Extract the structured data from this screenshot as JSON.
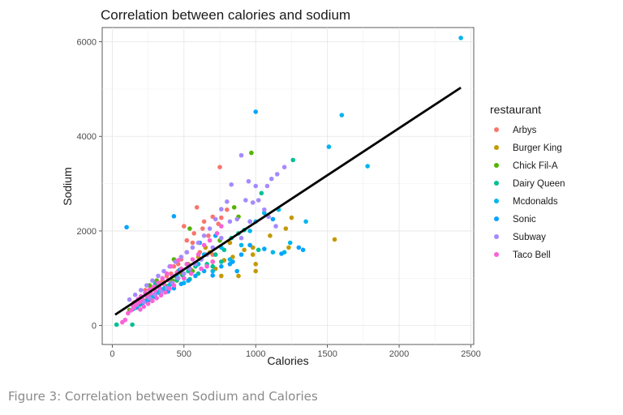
{
  "caption": "Figure 3: Correlation between Sodium and Calories",
  "chart_data": {
    "type": "scatter",
    "title": "Correlation between calories and sodium",
    "xlabel": "Calories",
    "ylabel": "Sodium",
    "xlim": [
      -70,
      2520
    ],
    "ylim": [
      -400,
      6300
    ],
    "x_ticks": [
      0,
      500,
      1000,
      1500,
      2000,
      2500
    ],
    "y_ticks": [
      0,
      2000,
      4000,
      6000
    ],
    "grid": true,
    "legend_title": "restaurant",
    "legend_position": "right",
    "trend_line": {
      "x": [
        20,
        2430
      ],
      "y": [
        230,
        5030
      ]
    },
    "series": [
      {
        "name": "Arbys",
        "color": "#F8766D",
        "points": [
          [
            750,
            3350
          ],
          [
            590,
            2500
          ],
          [
            700,
            2300
          ],
          [
            640,
            2200
          ],
          [
            760,
            2280
          ],
          [
            500,
            2100
          ],
          [
            520,
            1800
          ],
          [
            560,
            1750
          ],
          [
            610,
            1550
          ],
          [
            670,
            1900
          ],
          [
            700,
            1500
          ],
          [
            480,
            1400
          ],
          [
            430,
            1250
          ],
          [
            410,
            1100
          ],
          [
            350,
            950
          ],
          [
            300,
            850
          ],
          [
            230,
            750
          ],
          [
            260,
            650
          ],
          [
            200,
            550
          ],
          [
            180,
            500
          ],
          [
            520,
            1550
          ],
          [
            460,
            1300
          ],
          [
            800,
            2450
          ],
          [
            740,
            2150
          ],
          [
            630,
            2050
          ],
          [
            570,
            1950
          ],
          [
            380,
            1050
          ],
          [
            330,
            900
          ],
          [
            280,
            780
          ],
          [
            150,
            480
          ]
        ]
      },
      {
        "name": "Burger King",
        "color": "#C49A00",
        "points": [
          [
            1550,
            1820
          ],
          [
            1250,
            2280
          ],
          [
            1210,
            2050
          ],
          [
            1100,
            1900
          ],
          [
            1000,
            1150
          ],
          [
            980,
            1500
          ],
          [
            920,
            1600
          ],
          [
            880,
            1050
          ],
          [
            840,
            1450
          ],
          [
            780,
            1380
          ],
          [
            720,
            1200
          ],
          [
            680,
            1550
          ],
          [
            650,
            1650
          ],
          [
            600,
            1450
          ],
          [
            550,
            1180
          ],
          [
            530,
            1300
          ],
          [
            480,
            1100
          ],
          [
            450,
            950
          ],
          [
            400,
            850
          ],
          [
            360,
            760
          ],
          [
            320,
            700
          ],
          [
            270,
            600
          ],
          [
            240,
            540
          ],
          [
            210,
            470
          ],
          [
            1000,
            1300
          ],
          [
            760,
            1050
          ],
          [
            820,
            1750
          ],
          [
            700,
            1350
          ],
          [
            980,
            1650
          ],
          [
            1230,
            1650
          ]
        ]
      },
      {
        "name": "Chick Fil-A",
        "color": "#53B400",
        "points": [
          [
            970,
            3650
          ],
          [
            850,
            2500
          ],
          [
            880,
            2300
          ],
          [
            750,
            1800
          ],
          [
            650,
            1500
          ],
          [
            600,
            1300
          ],
          [
            560,
            1150
          ],
          [
            500,
            1000
          ],
          [
            460,
            1150
          ],
          [
            420,
            950
          ],
          [
            380,
            830
          ],
          [
            340,
            740
          ],
          [
            290,
            620
          ],
          [
            250,
            540
          ],
          [
            210,
            450
          ],
          [
            170,
            400
          ],
          [
            120,
            330
          ],
          [
            540,
            2050
          ],
          [
            430,
            1400
          ],
          [
            310,
            950
          ],
          [
            260,
            850
          ],
          [
            440,
            1050
          ]
        ]
      },
      {
        "name": "Dairy Queen",
        "color": "#00C094",
        "points": [
          [
            1260,
            3500
          ],
          [
            1040,
            2800
          ],
          [
            960,
            2200
          ],
          [
            920,
            2020
          ],
          [
            880,
            1950
          ],
          [
            830,
            1850
          ],
          [
            780,
            1600
          ],
          [
            720,
            1500
          ],
          [
            660,
            1300
          ],
          [
            620,
            1400
          ],
          [
            580,
            1250
          ],
          [
            530,
            1150
          ],
          [
            490,
            1060
          ],
          [
            450,
            960
          ],
          [
            410,
            890
          ],
          [
            370,
            800
          ],
          [
            330,
            720
          ],
          [
            300,
            660
          ],
          [
            260,
            580
          ],
          [
            230,
            510
          ],
          [
            190,
            440
          ],
          [
            150,
            360
          ],
          [
            30,
            20
          ],
          [
            140,
            20
          ],
          [
            540,
            980
          ],
          [
            600,
            1100
          ],
          [
            700,
            1250
          ],
          [
            760,
            1350
          ],
          [
            1020,
            1600
          ],
          [
            300,
            880
          ]
        ]
      },
      {
        "name": "Mcdonalds",
        "color": "#00B6EB",
        "points": [
          [
            2430,
            6080
          ],
          [
            1600,
            4450
          ],
          [
            1510,
            3780
          ],
          [
            1780,
            3370
          ],
          [
            1060,
            2380
          ],
          [
            1000,
            2200
          ],
          [
            960,
            2000
          ],
          [
            900,
            1700
          ],
          [
            820,
            1400
          ],
          [
            760,
            1650
          ],
          [
            700,
            1150
          ],
          [
            640,
            1500
          ],
          [
            600,
            1300
          ],
          [
            540,
            1200
          ],
          [
            500,
            900
          ],
          [
            450,
            1050
          ],
          [
            400,
            860
          ],
          [
            360,
            780
          ],
          [
            320,
            700
          ],
          [
            280,
            620
          ],
          [
            250,
            540
          ],
          [
            210,
            480
          ],
          [
            170,
            400
          ],
          [
            140,
            340
          ],
          [
            1120,
            1550
          ],
          [
            1240,
            1750
          ],
          [
            1200,
            1550
          ],
          [
            1350,
            2200
          ],
          [
            1160,
            2450
          ]
        ]
      },
      {
        "name": "Sonic",
        "color": "#06A4FF",
        "points": [
          [
            1000,
            4520
          ],
          [
            430,
            2310
          ],
          [
            100,
            2080
          ],
          [
            1300,
            1650
          ],
          [
            1180,
            1520
          ],
          [
            1060,
            1620
          ],
          [
            960,
            1700
          ],
          [
            900,
            1500
          ],
          [
            840,
            1350
          ],
          [
            760,
            1250
          ],
          [
            700,
            1060
          ],
          [
            640,
            1150
          ],
          [
            580,
            1050
          ],
          [
            530,
            950
          ],
          [
            480,
            880
          ],
          [
            430,
            790
          ],
          [
            390,
            720
          ],
          [
            340,
            650
          ],
          [
            300,
            600
          ],
          [
            250,
            520
          ],
          [
            210,
            450
          ],
          [
            170,
            380
          ],
          [
            610,
            1750
          ],
          [
            720,
            1900
          ],
          [
            820,
            1300
          ],
          [
            870,
            1150
          ],
          [
            520,
            1300
          ],
          [
            470,
            1180
          ],
          [
            1120,
            2250
          ],
          [
            1330,
            1600
          ]
        ]
      },
      {
        "name": "Subway",
        "color": "#A58AFF",
        "points": [
          [
            950,
            3050
          ],
          [
            1000,
            2950
          ],
          [
            1080,
            2950
          ],
          [
            1110,
            3100
          ],
          [
            1150,
            3200
          ],
          [
            1200,
            3350
          ],
          [
            900,
            3600
          ],
          [
            830,
            2980
          ],
          [
            800,
            2620
          ],
          [
            760,
            2460
          ],
          [
            720,
            2250
          ],
          [
            680,
            2050
          ],
          [
            640,
            1900
          ],
          [
            600,
            1750
          ],
          [
            560,
            1650
          ],
          [
            520,
            1550
          ],
          [
            480,
            1450
          ],
          [
            440,
            1350
          ],
          [
            400,
            1250
          ],
          [
            360,
            1150
          ],
          [
            320,
            1050
          ],
          [
            280,
            950
          ],
          [
            240,
            850
          ],
          [
            200,
            750
          ],
          [
            160,
            650
          ],
          [
            120,
            550
          ],
          [
            930,
            2650
          ],
          [
            870,
            2250
          ],
          [
            980,
            2600
          ],
          [
            1060,
            2450
          ],
          [
            1140,
            2100
          ],
          [
            760,
            1850
          ],
          [
            700,
            1650
          ],
          [
            660,
            1500
          ],
          [
            620,
            1400
          ],
          [
            580,
            1300
          ],
          [
            540,
            1200
          ],
          [
            500,
            1100
          ],
          [
            460,
            1000
          ],
          [
            420,
            900
          ],
          [
            380,
            800
          ],
          [
            340,
            720
          ],
          [
            300,
            650
          ],
          [
            260,
            580
          ],
          [
            220,
            500
          ],
          [
            820,
            2200
          ],
          [
            900,
            1850
          ],
          [
            960,
            2200
          ],
          [
            1020,
            2650
          ],
          [
            1090,
            2300
          ]
        ]
      },
      {
        "name": "Taco Bell",
        "color": "#FB61D7",
        "points": [
          [
            760,
            2100
          ],
          [
            730,
            1950
          ],
          [
            680,
            1800
          ],
          [
            640,
            1700
          ],
          [
            600,
            1500
          ],
          [
            560,
            1400
          ],
          [
            520,
            1300
          ],
          [
            480,
            1200
          ],
          [
            450,
            1120
          ],
          [
            420,
            1050
          ],
          [
            390,
            960
          ],
          [
            360,
            880
          ],
          [
            330,
            800
          ],
          [
            300,
            740
          ],
          [
            270,
            680
          ],
          [
            240,
            620
          ],
          [
            210,
            560
          ],
          [
            190,
            500
          ],
          [
            170,
            440
          ],
          [
            150,
            380
          ],
          [
            130,
            320
          ],
          [
            110,
            260
          ],
          [
            410,
            1250
          ],
          [
            460,
            1380
          ],
          [
            380,
            1100
          ],
          [
            350,
            1000
          ],
          [
            320,
            900
          ],
          [
            290,
            820
          ],
          [
            260,
            760
          ],
          [
            230,
            690
          ],
          [
            200,
            620
          ],
          [
            180,
            560
          ],
          [
            160,
            500
          ],
          [
            140,
            440
          ],
          [
            90,
            120
          ],
          [
            70,
            70
          ],
          [
            500,
            1000
          ],
          [
            550,
            1100
          ],
          [
            620,
            1200
          ],
          [
            660,
            1250
          ],
          [
            700,
            1350
          ],
          [
            430,
            850
          ],
          [
            400,
            780
          ],
          [
            370,
            700
          ],
          [
            340,
            640
          ],
          [
            310,
            580
          ],
          [
            280,
            520
          ],
          [
            250,
            460
          ],
          [
            220,
            400
          ],
          [
            195,
            340
          ]
        ]
      }
    ]
  }
}
